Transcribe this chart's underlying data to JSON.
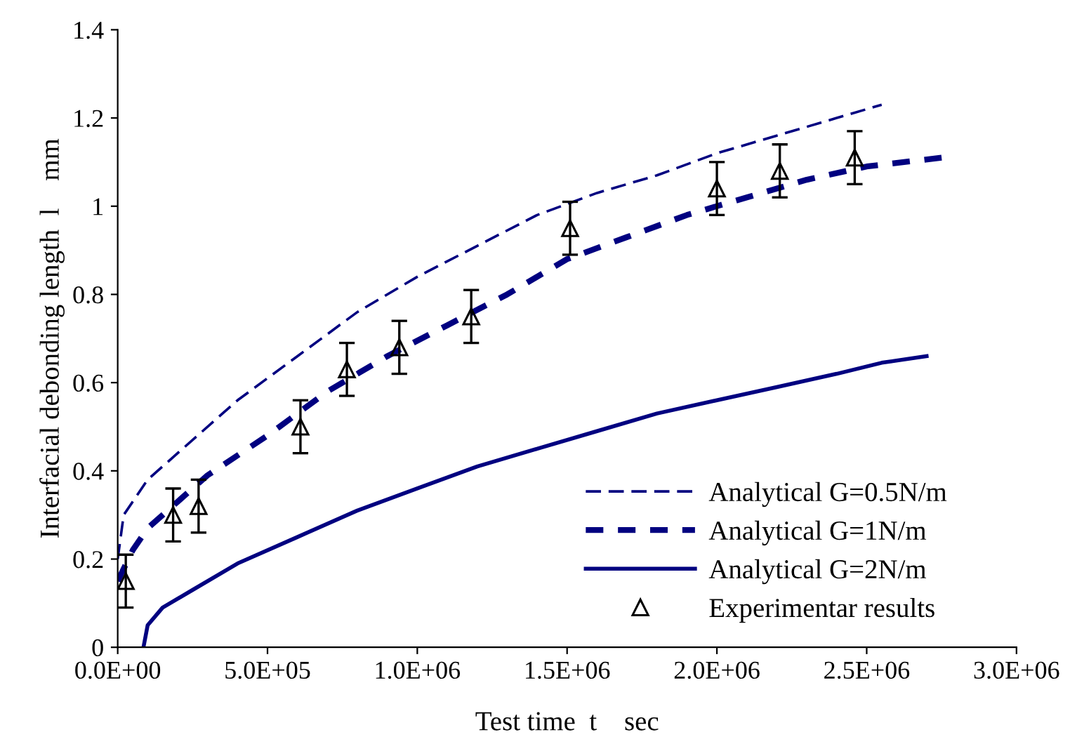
{
  "chart_data": {
    "type": "line",
    "xlabel": "Test time  t    sec",
    "ylabel": "Interfacial debonding length  l    mm",
    "xlim": [
      0,
      3000000
    ],
    "xticks": [
      {
        "value": 0,
        "label": "0.0E+00"
      },
      {
        "value": 500000,
        "label": "5.0E+05"
      },
      {
        "value": 1000000,
        "label": "1.0E+06"
      },
      {
        "value": 1500000,
        "label": "1.5E+06"
      },
      {
        "value": 2000000,
        "label": "2.0E+06"
      },
      {
        "value": 2500000,
        "label": "2.5E+06"
      },
      {
        "value": 3000000,
        "label": "3.0E+06"
      }
    ],
    "ylim": [
      0,
      1.4
    ],
    "yticks": [
      0,
      {
        "value": 0.2,
        "label": "0.2"
      },
      {
        "value": 0.4,
        "label": "0.4"
      },
      {
        "value": 0.6,
        "label": "0.6"
      },
      {
        "value": 0.8,
        "label": "0.8"
      },
      1,
      {
        "value": 1.2,
        "label": "1.2"
      },
      {
        "value": 1.4,
        "label": "1.4"
      }
    ],
    "grid": false,
    "legend": "bottom right",
    "series": [
      {
        "name": "Analytical G=0.5N/m",
        "type": "line",
        "line_style": "dashed",
        "color": "#000080",
        "x": [
          0,
          20000,
          100000,
          200000,
          400000,
          600000,
          800000,
          1000000,
          1200000,
          1400000,
          1600000,
          1800000,
          2000000,
          2200000,
          2400000,
          2550000
        ],
        "values": [
          0.2,
          0.3,
          0.38,
          0.44,
          0.56,
          0.66,
          0.76,
          0.84,
          0.91,
          0.98,
          1.03,
          1.07,
          1.12,
          1.16,
          1.2,
          1.23
        ]
      },
      {
        "name": "Analytical G=1N/m",
        "type": "line",
        "line_style": "dotted",
        "color": "#000080",
        "x": [
          0,
          50000,
          100000,
          200000,
          300000,
          500000,
          700000,
          900000,
          1100000,
          1300000,
          1500000,
          1700000,
          1900000,
          2100000,
          2300000,
          2500000,
          2750000
        ],
        "values": [
          0.15,
          0.22,
          0.27,
          0.33,
          0.39,
          0.48,
          0.58,
          0.66,
          0.73,
          0.8,
          0.88,
          0.93,
          0.98,
          1.02,
          1.06,
          1.09,
          1.11
        ]
      },
      {
        "name": "Analytical G=2N/m",
        "type": "line",
        "line_style": "solid",
        "color": "#000080",
        "x": [
          86000,
          100000,
          150000,
          250000,
          400000,
          600000,
          800000,
          1000000,
          1200000,
          1400000,
          1600000,
          1800000,
          2000000,
          2200000,
          2400000,
          2550000,
          2700000
        ],
        "values": [
          0,
          0.05,
          0.09,
          0.13,
          0.19,
          0.25,
          0.31,
          0.36,
          0.41,
          0.45,
          0.49,
          0.53,
          0.56,
          0.59,
          0.62,
          0.645,
          0.66
        ]
      },
      {
        "name": "Experimentar results",
        "type": "scatter",
        "marker": "triangle",
        "color": "#000000",
        "x": [
          27000,
          185000,
          270000,
          610000,
          765000,
          940000,
          1180000,
          1510000,
          2000000,
          2210000,
          2460000
        ],
        "values": [
          0.15,
          0.3,
          0.32,
          0.5,
          0.63,
          0.68,
          0.75,
          0.95,
          1.04,
          1.08,
          1.11
        ],
        "errors": [
          0.06,
          0.06,
          0.06,
          0.06,
          0.06,
          0.06,
          0.06,
          0.06,
          0.06,
          0.06,
          0.06
        ]
      }
    ]
  }
}
